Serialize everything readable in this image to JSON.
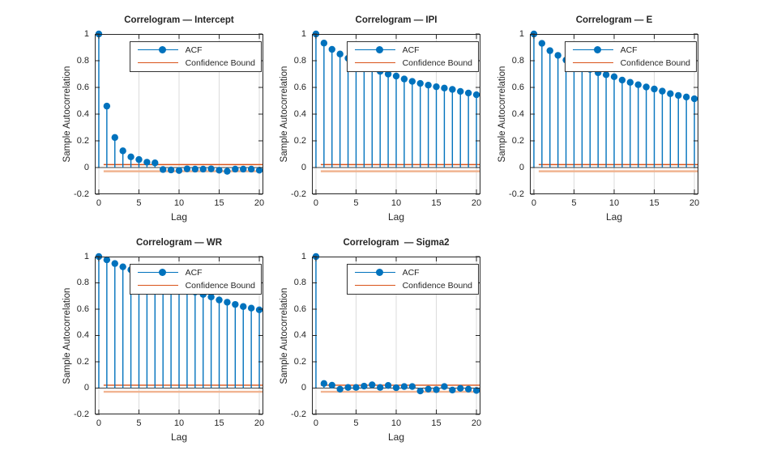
{
  "figure": {
    "background": "#ffffff",
    "ylabel": "Sample Autocorrelation",
    "xlabel": "Lag",
    "yticks": [
      1,
      0.8,
      0.6,
      0.4,
      0.2,
      0,
      -0.2
    ],
    "xticks": [
      0,
      5,
      10,
      15,
      20
    ],
    "ylim": [
      -0.2,
      1
    ],
    "xlim": [
      -0.5,
      20.5
    ],
    "grid": "vertical-only",
    "legend": {
      "acf_label": "ACF",
      "bound_label": "Confidence Bound",
      "position": "top-right-inside"
    },
    "colors": {
      "stem": "#0072BD",
      "marker": "#0072BD",
      "bound_upper": "#D95319",
      "bound_lower": "#F1B491",
      "baseline": "#404040",
      "grid": "#DBDBDB",
      "axis": "#262626",
      "text": "#262626",
      "legend_border": "#333333"
    }
  },
  "chart_data": [
    {
      "type": "stem",
      "id": "intercept",
      "title": "Correlogram — Intercept",
      "xlabel": "Lag",
      "ylabel": "Sample Autocorrelation",
      "xlim": [
        -0.5,
        20.5
      ],
      "ylim": [
        -0.2,
        1
      ],
      "lags": [
        0,
        1,
        2,
        3,
        4,
        5,
        6,
        7,
        8,
        9,
        10,
        11,
        12,
        13,
        14,
        15,
        16,
        17,
        18,
        19,
        20
      ],
      "acf": [
        1.0,
        0.46,
        0.225,
        0.125,
        0.08,
        0.06,
        0.04,
        0.035,
        -0.015,
        -0.018,
        -0.022,
        -0.01,
        -0.012,
        -0.012,
        -0.01,
        -0.02,
        -0.028,
        -0.012,
        -0.012,
        -0.012,
        -0.02
      ],
      "confidence_bound_upper": 0.022,
      "confidence_bound_lower": -0.028,
      "legend": [
        "ACF",
        "Confidence Bound"
      ]
    },
    {
      "type": "stem",
      "id": "ipi",
      "title": "Correlogram — IPI",
      "xlabel": "Lag",
      "ylabel": "Sample Autocorrelation",
      "xlim": [
        -0.5,
        20.5
      ],
      "ylim": [
        -0.2,
        1
      ],
      "lags": [
        0,
        1,
        2,
        3,
        4,
        5,
        6,
        7,
        8,
        9,
        10,
        11,
        12,
        13,
        14,
        15,
        16,
        17,
        18,
        19,
        20
      ],
      "acf": [
        1.0,
        0.932,
        0.885,
        0.85,
        0.818,
        0.79,
        0.765,
        0.742,
        0.72,
        0.7,
        0.685,
        0.663,
        0.645,
        0.63,
        0.617,
        0.605,
        0.595,
        0.585,
        0.57,
        0.558,
        0.545
      ],
      "confidence_bound_upper": 0.022,
      "confidence_bound_lower": -0.028,
      "legend": [
        "ACF",
        "Confidence Bound"
      ]
    },
    {
      "type": "stem",
      "id": "e",
      "title": "Correlogram — E",
      "xlabel": "Lag",
      "ylabel": "Sample Autocorrelation",
      "xlim": [
        -0.5,
        20.5
      ],
      "ylim": [
        -0.2,
        1
      ],
      "lags": [
        0,
        1,
        2,
        3,
        4,
        5,
        6,
        7,
        8,
        9,
        10,
        11,
        12,
        13,
        14,
        15,
        16,
        17,
        18,
        19,
        20
      ],
      "acf": [
        1.0,
        0.93,
        0.875,
        0.84,
        0.805,
        0.775,
        0.75,
        0.735,
        0.71,
        0.695,
        0.68,
        0.655,
        0.638,
        0.62,
        0.603,
        0.588,
        0.572,
        0.553,
        0.54,
        0.528,
        0.515
      ],
      "confidence_bound_upper": 0.022,
      "confidence_bound_lower": -0.028,
      "legend": [
        "ACF",
        "Confidence Bound"
      ]
    },
    {
      "type": "stem",
      "id": "wr",
      "title": "Correlogram — WR",
      "xlabel": "Lag",
      "ylabel": "Sample Autocorrelation",
      "xlim": [
        -0.5,
        20.5
      ],
      "ylim": [
        -0.2,
        1
      ],
      "lags": [
        0,
        1,
        2,
        3,
        4,
        5,
        6,
        7,
        8,
        9,
        10,
        11,
        12,
        13,
        14,
        15,
        16,
        17,
        18,
        19,
        20
      ],
      "acf": [
        1.0,
        0.975,
        0.947,
        0.922,
        0.9,
        0.878,
        0.853,
        0.828,
        0.8,
        0.775,
        0.758,
        0.745,
        0.73,
        0.712,
        0.693,
        0.67,
        0.653,
        0.636,
        0.62,
        0.608,
        0.595
      ],
      "confidence_bound_upper": 0.022,
      "confidence_bound_lower": -0.028,
      "legend": [
        "ACF",
        "Confidence Bound"
      ]
    },
    {
      "type": "stem",
      "id": "sigma2",
      "title": "Correlogram  — Sigma2",
      "xlabel": "Lag",
      "ylabel": "Sample Autocorrelation",
      "xlim": [
        -0.5,
        20.5
      ],
      "ylim": [
        -0.2,
        1
      ],
      "lags": [
        0,
        1,
        2,
        3,
        4,
        5,
        6,
        7,
        8,
        9,
        10,
        11,
        12,
        13,
        14,
        15,
        16,
        17,
        18,
        19,
        20
      ],
      "acf": [
        1.0,
        0.035,
        0.022,
        -0.008,
        0.005,
        0.005,
        0.015,
        0.025,
        0.005,
        0.02,
        0.003,
        0.012,
        0.012,
        -0.022,
        -0.008,
        -0.012,
        0.012,
        -0.015,
        -0.002,
        -0.008,
        -0.018
      ],
      "confidence_bound_upper": 0.022,
      "confidence_bound_lower": -0.028,
      "legend": [
        "ACF",
        "Confidence Bound"
      ]
    }
  ]
}
